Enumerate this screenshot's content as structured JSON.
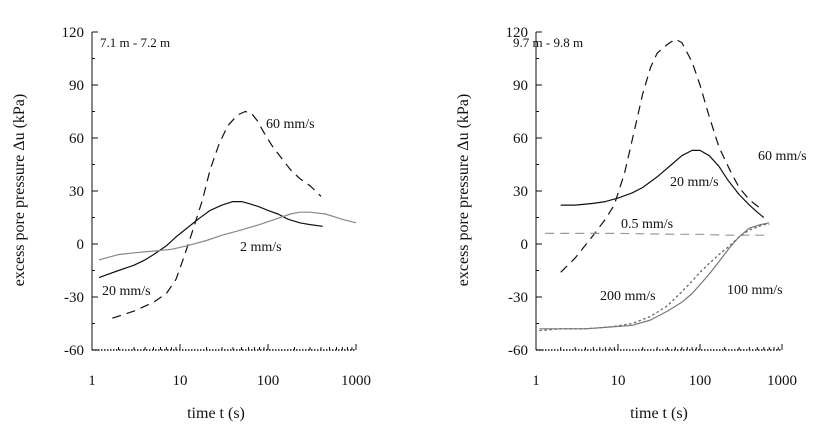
{
  "chart_data": [
    {
      "type": "line",
      "panel_label": "7.1 m - 7.2 m",
      "xlabel": "time t (s)",
      "ylabel": "excess pore pressure  Δu (kPa)",
      "xscale": "log",
      "xlim": [
        1,
        1000
      ],
      "ylim": [
        -60,
        120
      ],
      "xticks": [
        1,
        10,
        100,
        1000
      ],
      "xtick_labels": [
        "1",
        "10",
        "100",
        "1000"
      ],
      "yticks": [
        -60,
        -30,
        0,
        30,
        60,
        90,
        120
      ],
      "ytick_labels": [
        "-60",
        "-30",
        "0",
        "30",
        "60",
        "90",
        "120"
      ],
      "series": [
        {
          "name": "60 mm/s",
          "style": "dashed",
          "color": "#111111",
          "x": [
            1.7,
            3,
            5,
            7,
            9,
            11,
            14,
            18,
            22,
            28,
            35,
            45,
            55,
            65,
            75,
            90,
            110,
            140,
            180,
            230,
            300,
            400
          ],
          "y": [
            -42,
            -38,
            -33,
            -28,
            -20,
            -8,
            8,
            25,
            42,
            57,
            67,
            73,
            75,
            74,
            70,
            63,
            56,
            49,
            42,
            37,
            33,
            27
          ]
        },
        {
          "name": "20 mm/s",
          "style": "solid",
          "color": "#111111",
          "x": [
            1.2,
            2,
            3,
            4,
            5,
            7,
            9,
            12,
            16,
            22,
            30,
            40,
            50,
            60,
            80,
            100,
            130,
            170,
            230,
            300,
            420
          ],
          "y": [
            -19,
            -15,
            -12,
            -9,
            -6,
            -1,
            4,
            9,
            14,
            19,
            22,
            24,
            24,
            23,
            21,
            19,
            17,
            14,
            12,
            11,
            10
          ]
        },
        {
          "name": "2 mm/s",
          "style": "solid",
          "color": "#888888",
          "x": [
            1.2,
            2,
            3,
            5,
            8,
            12,
            20,
            30,
            50,
            80,
            120,
            180,
            230,
            300,
            450,
            700,
            1000
          ],
          "y": [
            -9,
            -6,
            -5,
            -4,
            -3,
            -1,
            2,
            5,
            8,
            11,
            14,
            17,
            18,
            18,
            17,
            14,
            12
          ]
        }
      ],
      "annotations": [
        "60 mm/s",
        "20 mm/s",
        "2 mm/s"
      ]
    },
    {
      "type": "line",
      "panel_label": "9.7 m - 9.8 m",
      "xlabel": "time t (s)",
      "ylabel": "excess pore pressure  Δu (kPa)",
      "xscale": "log",
      "xlim": [
        1,
        1000
      ],
      "ylim": [
        -60,
        120
      ],
      "xticks": [
        1,
        10,
        100,
        1000
      ],
      "xtick_labels": [
        "1",
        "10",
        "100",
        "1000"
      ],
      "yticks": [
        -60,
        -30,
        0,
        30,
        60,
        90,
        120
      ],
      "ytick_labels": [
        "-60",
        "-30",
        "0",
        "30",
        "60",
        "90",
        "120"
      ],
      "series": [
        {
          "name": "60 mm/s",
          "style": "dashed",
          "color": "#111111",
          "x": [
            2,
            3,
            5,
            7,
            9,
            12,
            16,
            20,
            25,
            30,
            40,
            50,
            60,
            80,
            100,
            130,
            170,
            230,
            300,
            400,
            550
          ],
          "y": [
            -16,
            -8,
            5,
            14,
            22,
            40,
            65,
            85,
            100,
            108,
            113,
            116,
            114,
            103,
            90,
            72,
            55,
            42,
            32,
            25,
            20
          ]
        },
        {
          "name": "20 mm/s",
          "style": "solid",
          "color": "#111111",
          "x": [
            2,
            3,
            5,
            7,
            10,
            15,
            20,
            30,
            45,
            60,
            80,
            100,
            130,
            170,
            220,
            300,
            400,
            500,
            600
          ],
          "y": [
            22,
            22,
            23,
            24,
            26,
            29,
            32,
            38,
            45,
            50,
            53,
            53,
            50,
            44,
            36,
            28,
            22,
            18,
            15
          ]
        },
        {
          "name": "0.5 mm/s",
          "style": "dashed",
          "color": "#999999",
          "x": [
            1.3,
            10,
            50,
            100,
            200,
            400,
            700
          ],
          "y": [
            6,
            6,
            5.5,
            5.5,
            5,
            5,
            5
          ]
        },
        {
          "name": "200 mm/s",
          "style": "dotted",
          "color": "#666666",
          "x": [
            1.1,
            2,
            4,
            8,
            15,
            25,
            40,
            60,
            80,
            100,
            130,
            170,
            230,
            300,
            400,
            600,
            700
          ],
          "y": [
            -49,
            -48,
            -48,
            -47,
            -45,
            -41,
            -35,
            -27,
            -21,
            -16,
            -11,
            -6,
            -1,
            4,
            8,
            11,
            11
          ]
        },
        {
          "name": "100 mm/s",
          "style": "solid",
          "color": "#777777",
          "x": [
            1.1,
            2,
            4,
            8,
            15,
            25,
            40,
            60,
            80,
            100,
            130,
            170,
            230,
            300,
            400,
            550,
            700
          ],
          "y": [
            -48,
            -48,
            -48,
            -47,
            -46,
            -43,
            -38,
            -33,
            -28,
            -23,
            -17,
            -10,
            -2,
            4,
            9,
            11,
            12
          ]
        }
      ],
      "annotations": [
        "60 mm/s",
        "20 mm/s",
        "0.5 mm/s",
        "200 mm/s",
        "100 mm/s"
      ]
    }
  ]
}
